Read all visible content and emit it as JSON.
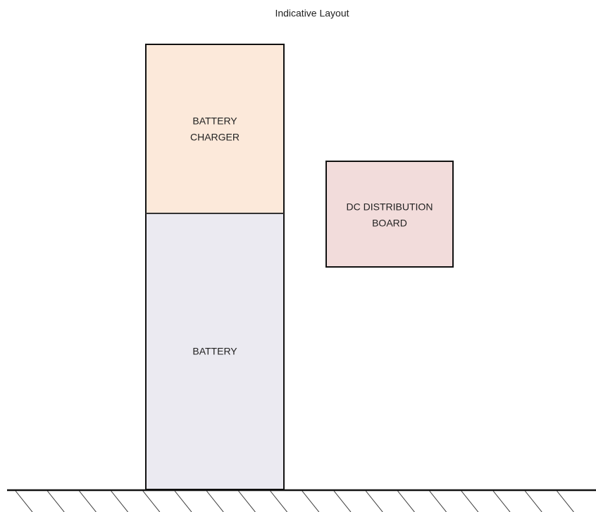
{
  "title": "Indicative Layout",
  "nodes": [
    {
      "lines": [
        "BATTERY",
        "CHARGER"
      ]
    },
    {
      "lines": [
        "BATTERY"
      ]
    },
    {
      "lines": [
        "DC DISTRIBUTION",
        "BOARD"
      ]
    }
  ]
}
